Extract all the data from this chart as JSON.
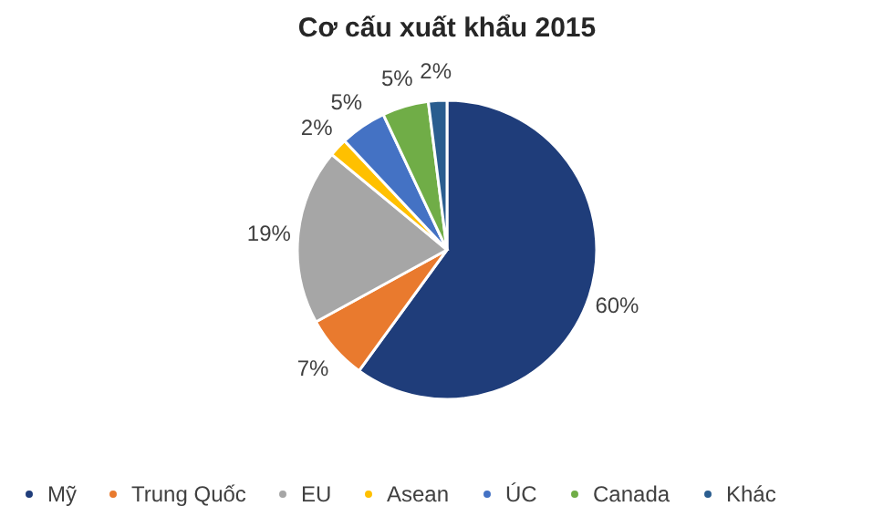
{
  "chart_data": {
    "type": "pie",
    "title": "Cơ cấu xuất khẩu 2015",
    "categories": [
      "Mỹ",
      "Trung Quốc",
      "EU",
      "Asean",
      "ÚC",
      "Canada",
      "Khác"
    ],
    "values": [
      60,
      7,
      19,
      2,
      5,
      5,
      2
    ],
    "colors": [
      "#1f3d7a",
      "#e97a2e",
      "#a6a6a6",
      "#ffc000",
      "#4472c4",
      "#70ad47",
      "#2a5d8f"
    ],
    "value_labels": [
      "60%",
      "7%",
      "19%",
      "2%",
      "5%",
      "5%",
      "2%"
    ],
    "legend": "bottom"
  }
}
